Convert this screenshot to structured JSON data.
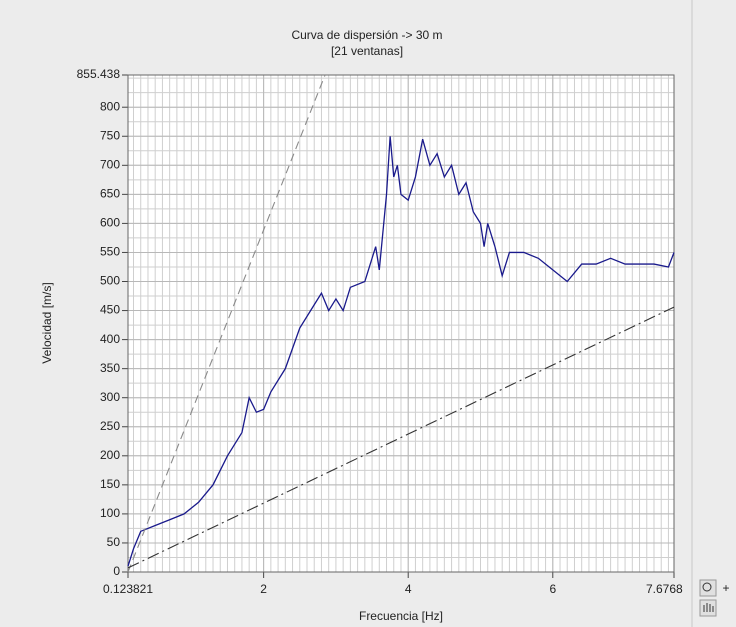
{
  "chart_data": {
    "type": "line",
    "title": "Curva de dispersión -> 30 m",
    "subtitle": "[21 ventanas]",
    "x_label": "Frecuencia [Hz]",
    "y_label": "Velocidad [m/s]",
    "xlim": [
      0.123821,
      7.6768
    ],
    "ylim": [
      0,
      855.438
    ],
    "xticks": [
      0.123821,
      2,
      4,
      6,
      7.6768
    ],
    "yticks": [
      0,
      50,
      100,
      150,
      200,
      250,
      300,
      350,
      400,
      450,
      500,
      550,
      600,
      650,
      700,
      750,
      800,
      855.438
    ],
    "grid": true,
    "series": [
      {
        "color": "#1a1a8c",
        "style": "solid",
        "x": [
          0.123821,
          0.2,
          0.3,
          0.5,
          0.7,
          0.9,
          1.1,
          1.3,
          1.5,
          1.7,
          1.8,
          1.9,
          2.0,
          2.1,
          2.3,
          2.5,
          2.7,
          2.8,
          2.9,
          3.0,
          3.1,
          3.2,
          3.4,
          3.55,
          3.6,
          3.7,
          3.75,
          3.8,
          3.85,
          3.9,
          4.0,
          4.1,
          4.2,
          4.3,
          4.4,
          4.5,
          4.6,
          4.7,
          4.8,
          4.9,
          5.0,
          5.05,
          5.1,
          5.2,
          5.3,
          5.4,
          5.6,
          5.8,
          6.0,
          6.2,
          6.4,
          6.6,
          6.8,
          7.0,
          7.2,
          7.4,
          7.6,
          7.6768
        ],
        "values": [
          10,
          40,
          70,
          80,
          90,
          100,
          120,
          150,
          200,
          240,
          300,
          275,
          280,
          310,
          350,
          420,
          460,
          480,
          450,
          470,
          450,
          490,
          500,
          560,
          520,
          650,
          750,
          680,
          700,
          650,
          640,
          680,
          745,
          700,
          720,
          680,
          700,
          650,
          670,
          620,
          600,
          560,
          600,
          560,
          510,
          550,
          550,
          540,
          520,
          500,
          530,
          530,
          540,
          530,
          530,
          530,
          525,
          550
        ]
      },
      {
        "color": "#8a8a8a",
        "style": "dashed",
        "x": [
          0.123821,
          2.85
        ],
        "values": [
          0,
          855.438
        ]
      },
      {
        "color": "#333333",
        "style": "dashdot",
        "x": [
          0.123821,
          7.6768
        ],
        "values": [
          7,
          456
        ]
      }
    ]
  }
}
